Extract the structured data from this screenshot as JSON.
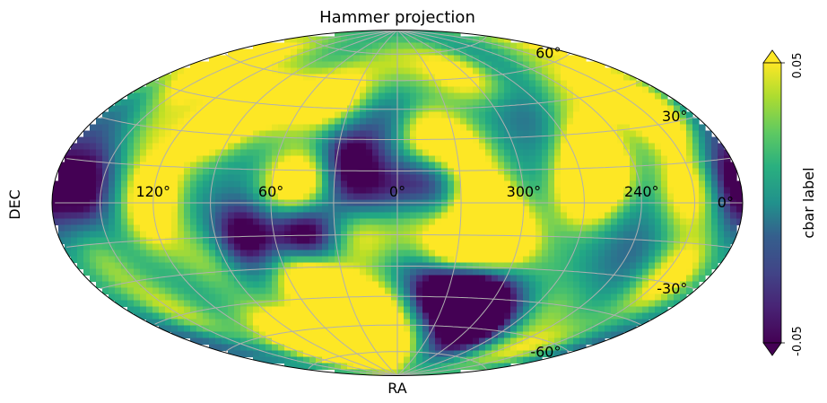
{
  "chart_data": {
    "type": "heatmap",
    "projection": "hammer",
    "title": "Hammer projection",
    "xlabel": "RA",
    "ylabel": "DEC",
    "ra_tick_labels": [
      "120°",
      "60°",
      "0°",
      "300°",
      "240°"
    ],
    "ra_tick_values": [
      120,
      60,
      0,
      300,
      240
    ],
    "dec_tick_labels": [
      "60°",
      "30°",
      "0°",
      "-30°",
      "-60°"
    ],
    "dec_tick_values": [
      60,
      30,
      0,
      -30,
      -60
    ],
    "grid": true,
    "colormap": "viridis",
    "colorbar": {
      "label": "cbar label",
      "min_label": "-0.05",
      "max_label": "0.05",
      "vmin": -0.05,
      "vmax": 0.05,
      "extend": "both"
    },
    "features": [
      {
        "ra": 45,
        "dec": 50,
        "value": 0.05
      },
      {
        "ra": 305,
        "dec": 62,
        "value": 0.04
      },
      {
        "ra": 0,
        "dec": 38,
        "value": -0.02
      },
      {
        "ra": 345,
        "dec": 32,
        "value": 0.05
      },
      {
        "ra": 328,
        "dec": 22,
        "value": 0.04
      },
      {
        "ra": 95,
        "dec": 45,
        "value": 0.05
      },
      {
        "ra": 102,
        "dec": 32,
        "value": 0.04
      },
      {
        "ra": 70,
        "dec": 42,
        "value": 0.02
      },
      {
        "ra": 150,
        "dec": 55,
        "value": 0.05
      },
      {
        "ra": 135,
        "dec": 30,
        "value": 0.02
      },
      {
        "ra": 120,
        "dec": 8,
        "value": 0.04
      },
      {
        "ra": 50,
        "dec": 8,
        "value": 0.05
      },
      {
        "ra": 35,
        "dec": 15,
        "value": 0.03
      },
      {
        "ra": 27,
        "dec": 20,
        "value": -0.05
      },
      {
        "ra": 22,
        "dec": 5,
        "value": -0.02
      },
      {
        "ra": 10,
        "dec": 15,
        "value": 0.0
      },
      {
        "ra": 3,
        "dec": 5,
        "value": -0.02
      },
      {
        "ra": 343,
        "dec": 12,
        "value": -0.03
      },
      {
        "ra": 318,
        "dec": 0,
        "value": 0.05
      },
      {
        "ra": 305,
        "dec": -18,
        "value": 0.05
      },
      {
        "ra": 322,
        "dec": -18,
        "value": 0.04
      },
      {
        "ra": 270,
        "dec": 5,
        "value": 0.05
      },
      {
        "ra": 260,
        "dec": 15,
        "value": 0.04
      },
      {
        "ra": 215,
        "dec": 5,
        "value": 0.04
      },
      {
        "ra": 210,
        "dec": 35,
        "value": 0.05
      },
      {
        "ra": 245,
        "dec": 38,
        "value": 0.02
      },
      {
        "ra": 257,
        "dec": 22,
        "value": 0.03
      },
      {
        "ra": 185,
        "dec": 5,
        "value": -0.04
      },
      {
        "ra": 198,
        "dec": 40,
        "value": 0.02
      },
      {
        "ra": 160,
        "dec": 5,
        "value": -0.04
      },
      {
        "ra": 122,
        "dec": -8,
        "value": 0.03
      },
      {
        "ra": 75,
        "dec": -15,
        "value": -0.04
      },
      {
        "ra": 45,
        "dec": -15,
        "value": -0.05
      },
      {
        "ra": 18,
        "dec": -15,
        "value": 0.03
      },
      {
        "ra": 355,
        "dec": -10,
        "value": 0.02
      },
      {
        "ra": 335,
        "dec": -22,
        "value": 0.04
      },
      {
        "ra": 50,
        "dec": -35,
        "value": 0.05
      },
      {
        "ra": 35,
        "dec": -45,
        "value": 0.04
      },
      {
        "ra": 10,
        "dec": -50,
        "value": 0.03
      },
      {
        "ra": 330,
        "dec": -42,
        "value": -0.05
      },
      {
        "ra": 310,
        "dec": -45,
        "value": -0.05
      },
      {
        "ra": 345,
        "dec": -35,
        "value": -0.02
      },
      {
        "ra": 295,
        "dec": -60,
        "value": -0.05
      },
      {
        "ra": 90,
        "dec": -62,
        "value": 0.05
      },
      {
        "ra": 20,
        "dec": -68,
        "value": 0.05
      },
      {
        "ra": 60,
        "dec": -70,
        "value": 0.05
      },
      {
        "ra": 150,
        "dec": -45,
        "value": 0.03
      },
      {
        "ra": 205,
        "dec": -28,
        "value": 0.04
      },
      {
        "ra": 260,
        "dec": -50,
        "value": 0.02
      },
      {
        "ra": 225,
        "dec": -65,
        "value": 0.03
      },
      {
        "ra": 160,
        "dec": -20,
        "value": 0.02
      },
      {
        "ra": 100,
        "dec": -25,
        "value": 0.02
      },
      {
        "ra": 170,
        "dec": -55,
        "value": -0.02
      },
      {
        "ra": 240,
        "dec": -20,
        "value": -0.01
      },
      {
        "ra": 280,
        "dec": -30,
        "value": 0.01
      },
      {
        "ra": 5,
        "dec": 70,
        "value": 0.02
      },
      {
        "ra": 120,
        "dec": 68,
        "value": 0.01
      },
      {
        "ra": 260,
        "dec": 65,
        "value": -0.01
      },
      {
        "ra": 185,
        "dec": 65,
        "value": 0.02
      },
      {
        "ra": 175,
        "dec": 30,
        "value": -0.01
      },
      {
        "ra": 230,
        "dec": 55,
        "value": 0.02
      },
      {
        "ra": 285,
        "dec": 40,
        "value": -0.01
      },
      {
        "ra": 140,
        "dec": -5,
        "value": 0.0
      },
      {
        "ra": 195,
        "dec": -5,
        "value": 0.01
      },
      {
        "ra": 232,
        "dec": 20,
        "value": 0.0
      }
    ]
  }
}
